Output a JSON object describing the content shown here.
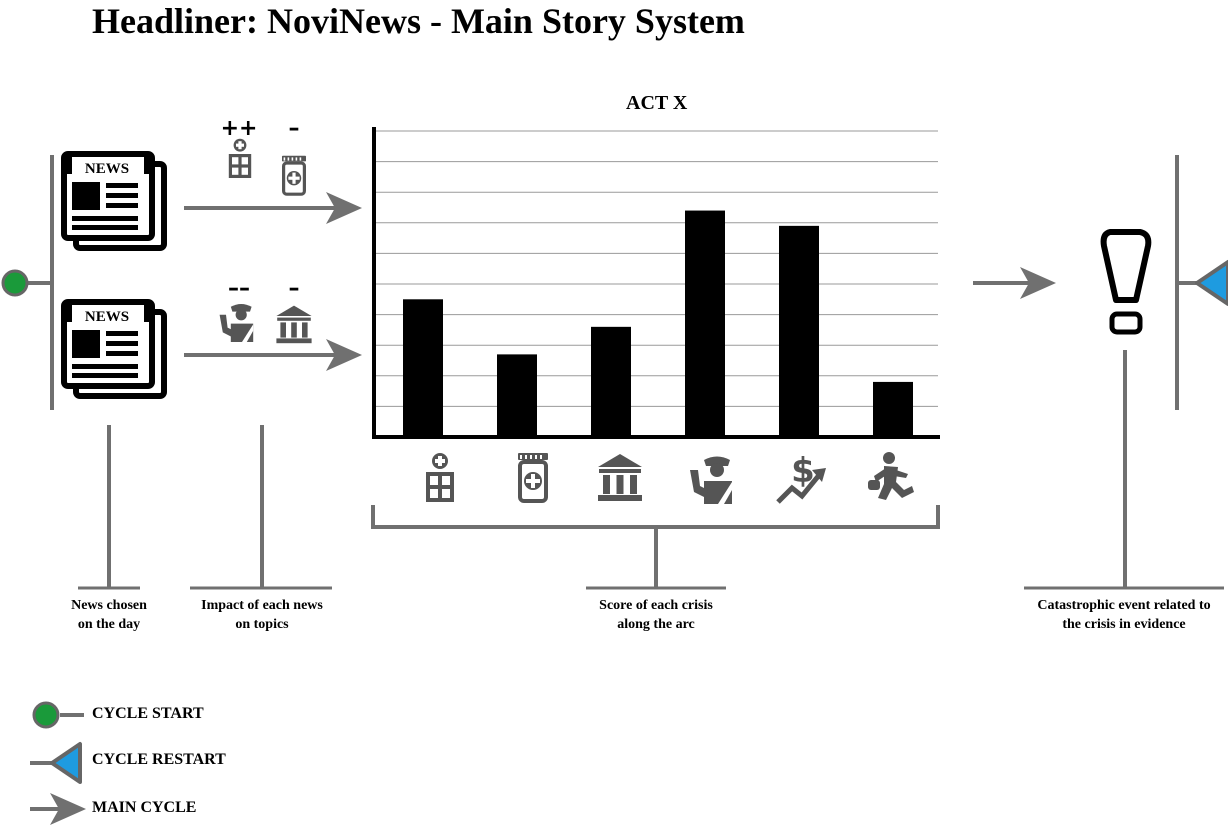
{
  "title": "Headliner: NoviNews - Main Story System",
  "colors": {
    "line": "#707070",
    "icon": "#555555",
    "start": "#1a9a3a",
    "restart": "#1e9be0",
    "bar": "#000000"
  },
  "news_items": [
    {
      "label": "NEWS",
      "impacts": [
        {
          "topic": "hospital-icon",
          "sign": "++"
        },
        {
          "topic": "medicine-icon",
          "sign": "–"
        }
      ]
    },
    {
      "label": "NEWS",
      "impacts": [
        {
          "topic": "police-icon",
          "sign": "––"
        },
        {
          "topic": "government-icon",
          "sign": "–"
        }
      ]
    }
  ],
  "chart_data": {
    "type": "bar",
    "title": "ACT X",
    "categories": [
      "hospital-icon",
      "medicine-icon",
      "government-icon",
      "police-icon",
      "economy-icon",
      "crime-icon"
    ],
    "values": [
      4.5,
      2.7,
      3.6,
      7.4,
      6.9,
      1.8
    ],
    "ylim": [
      0,
      10
    ],
    "grid": true
  },
  "captions": {
    "news": [
      "News chosen",
      "on the day"
    ],
    "impact": [
      "Impact of each news",
      "on topics"
    ],
    "score": [
      "Score of each crisis",
      "along the arc"
    ],
    "event": [
      "Catastrophic event related to",
      "the crisis in evidence"
    ]
  },
  "event_icon": "exclamation-icon",
  "legend": [
    {
      "type": "start",
      "label": "CYCLE START"
    },
    {
      "type": "restart",
      "label": "CYCLE RESTART"
    },
    {
      "type": "main",
      "label": "MAIN CYCLE"
    }
  ]
}
